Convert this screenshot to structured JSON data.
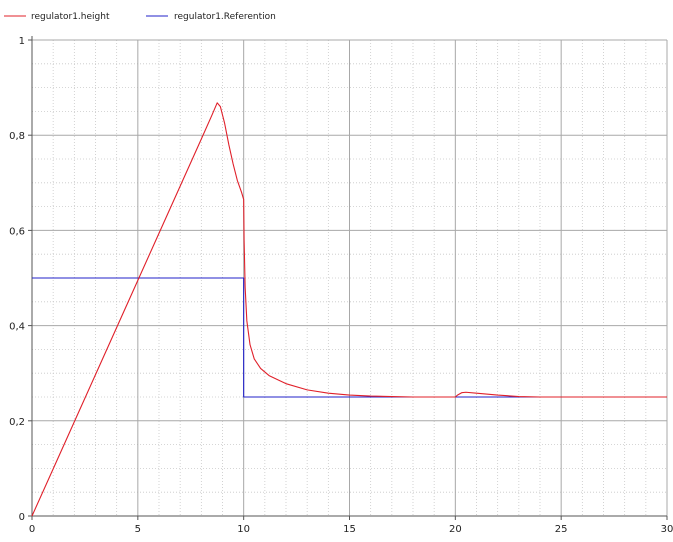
{
  "chart_data": {
    "type": "line",
    "xlim": [
      0,
      30
    ],
    "ylim": [
      0,
      1
    ],
    "x_ticks": [
      "0",
      "5",
      "10",
      "15",
      "20",
      "25",
      "30"
    ],
    "y_ticks": [
      "0",
      "0,2",
      "0,4",
      "0,6",
      "0,8",
      "1"
    ],
    "grid": true,
    "legend_position": "top-left",
    "series": [
      {
        "name": "regulator1.height",
        "color": "#e0202a",
        "points": [
          [
            0,
            0
          ],
          [
            1,
            0.099
          ],
          [
            2,
            0.198
          ],
          [
            3,
            0.297
          ],
          [
            4,
            0.396
          ],
          [
            5,
            0.495
          ],
          [
            6,
            0.594
          ],
          [
            7,
            0.693
          ],
          [
            8,
            0.792
          ],
          [
            8.5,
            0.842
          ],
          [
            8.75,
            0.868
          ],
          [
            8.9,
            0.86
          ],
          [
            9.1,
            0.825
          ],
          [
            9.3,
            0.78
          ],
          [
            9.5,
            0.74
          ],
          [
            9.7,
            0.705
          ],
          [
            9.9,
            0.68
          ],
          [
            10,
            0.665
          ],
          [
            10.02,
            0.58
          ],
          [
            10.07,
            0.48
          ],
          [
            10.15,
            0.41
          ],
          [
            10.3,
            0.36
          ],
          [
            10.5,
            0.33
          ],
          [
            10.8,
            0.31
          ],
          [
            11.2,
            0.295
          ],
          [
            12,
            0.278
          ],
          [
            13,
            0.265
          ],
          [
            14,
            0.258
          ],
          [
            15,
            0.254
          ],
          [
            16,
            0.252
          ],
          [
            17,
            0.251
          ],
          [
            18,
            0.25
          ],
          [
            19,
            0.25
          ],
          [
            20,
            0.25
          ],
          [
            20.1,
            0.254
          ],
          [
            20.3,
            0.259
          ],
          [
            20.5,
            0.26
          ],
          [
            21,
            0.258
          ],
          [
            22,
            0.254
          ],
          [
            23,
            0.251
          ],
          [
            24,
            0.25
          ],
          [
            26,
            0.25
          ],
          [
            28,
            0.25
          ],
          [
            30,
            0.25
          ]
        ]
      },
      {
        "name": "regulator1.Referention",
        "color": "#2020c8",
        "points": [
          [
            0,
            0.5
          ],
          [
            10,
            0.5
          ],
          [
            10,
            0.25
          ],
          [
            30,
            0.25
          ]
        ]
      }
    ]
  }
}
